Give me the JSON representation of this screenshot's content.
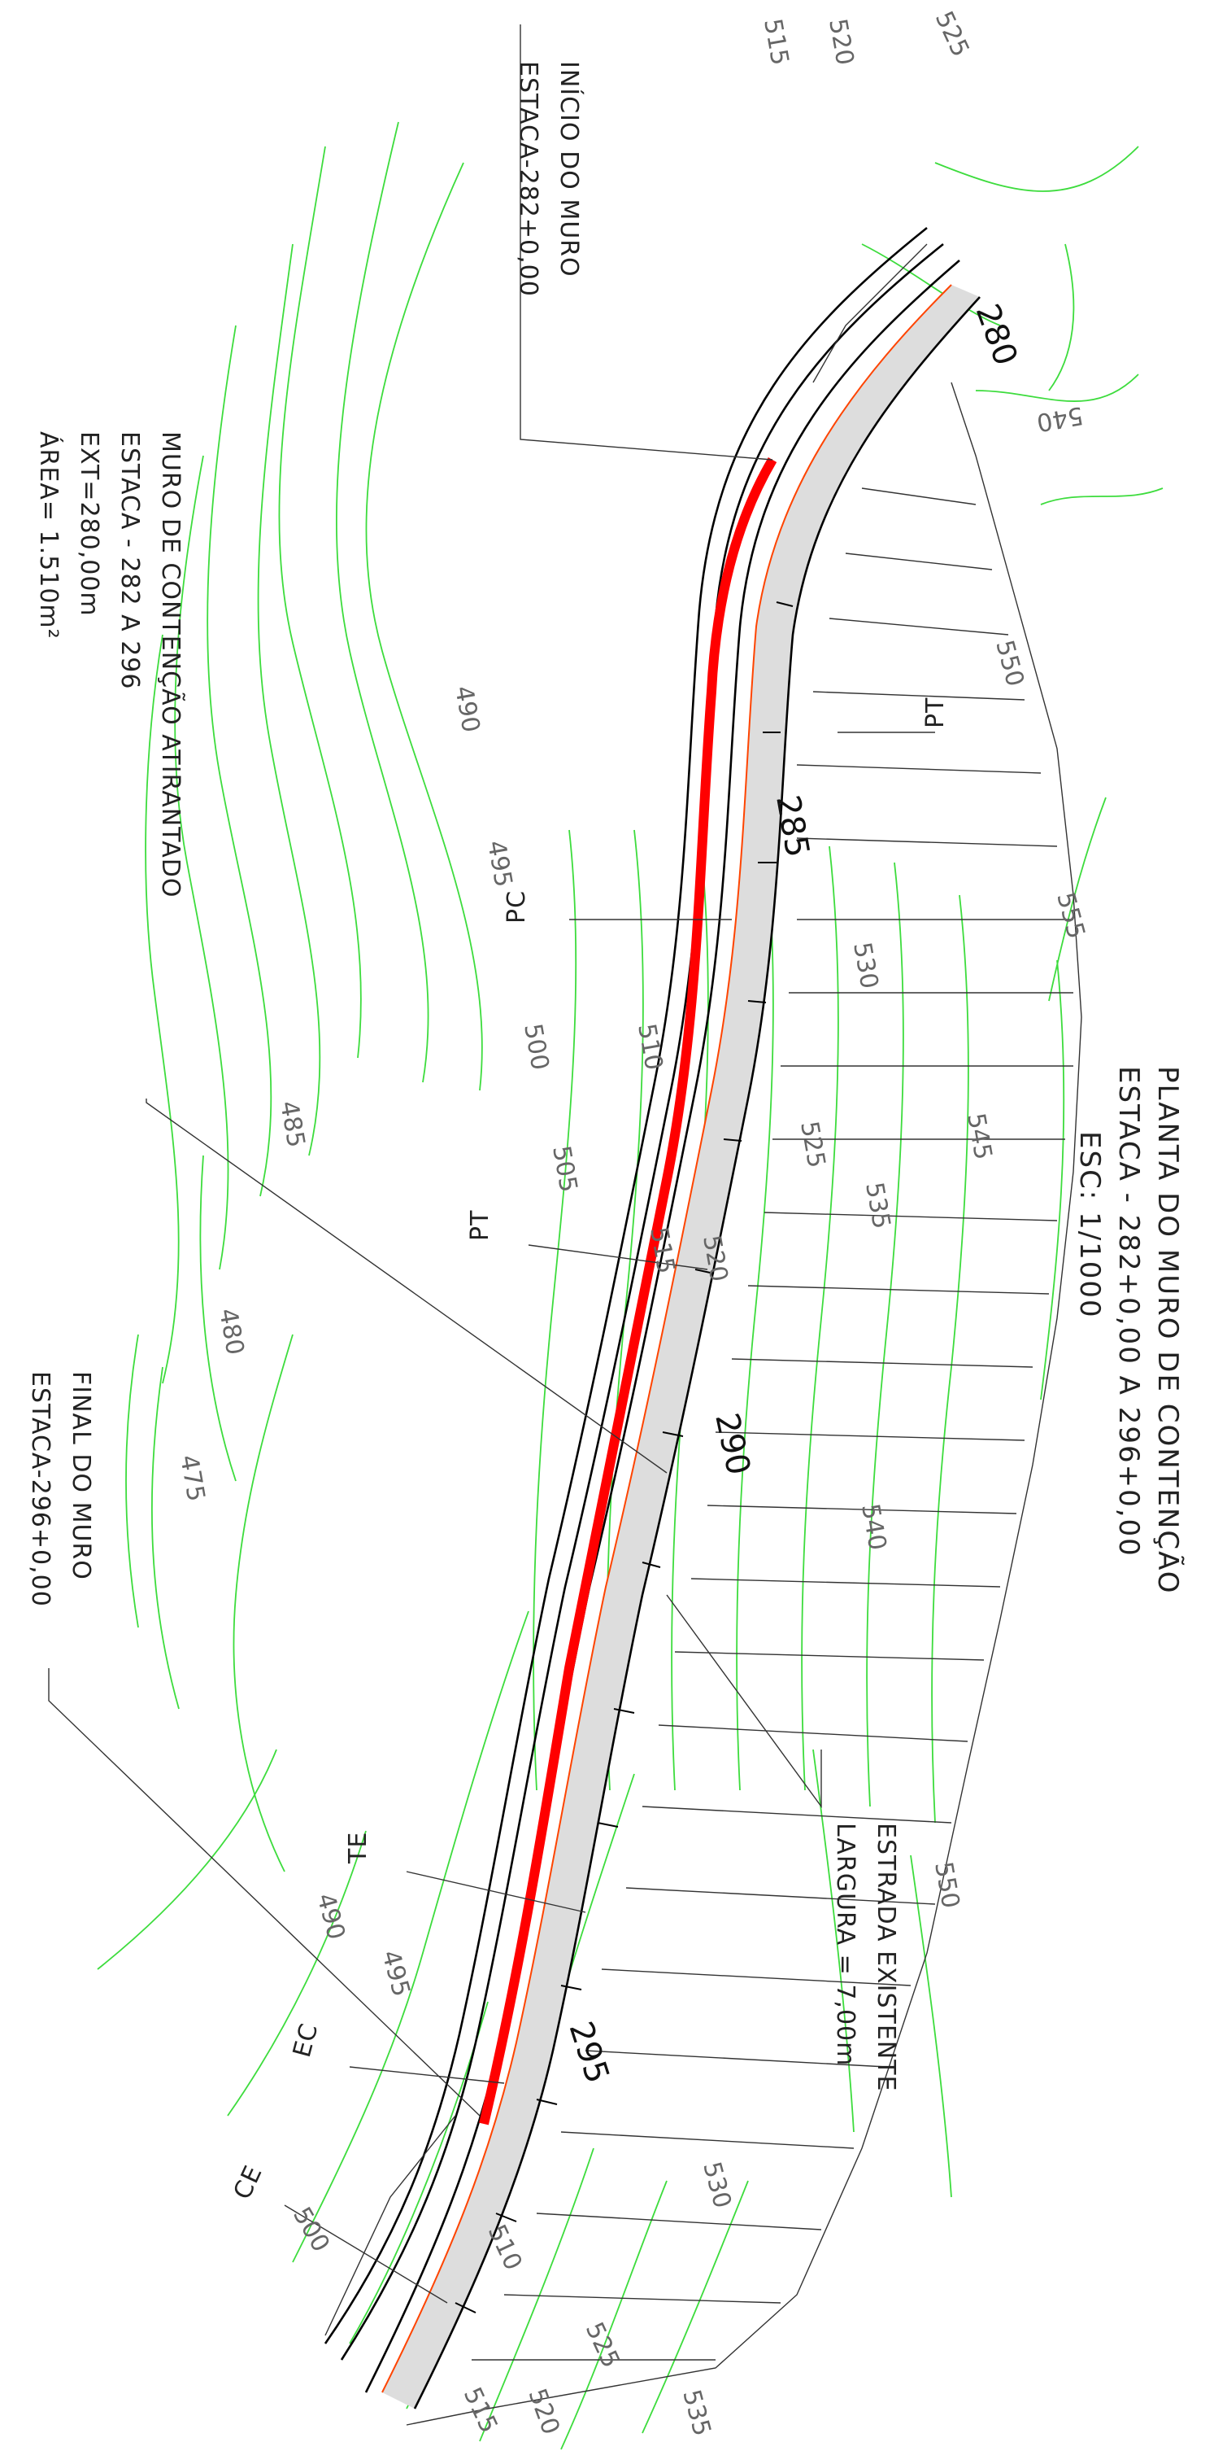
{
  "title": {
    "line1": "PLANTA DO MURO DE CONTENÇÃO",
    "line2": "ESTACA - 282+0,00 A 296+0,00",
    "line3": "ESC: 1/1000"
  },
  "wall_start": {
    "line1": "INÍCIO DO MURO",
    "line2": "ESTACA-282+0,00"
  },
  "wall_info": {
    "line1": "MURO DE CONTENÇÃO ATIRANTADO",
    "line2": "ESTACA - 282 A 296",
    "line3": "EXT=280,00m",
    "line4": "ÁREA= 1.510m²"
  },
  "wall_end": {
    "line1": "FINAL DO MURO",
    "line2": "ESTACA-296+0,00"
  },
  "road": {
    "line1": "ESTRADA EXISTENTE",
    "line2": "LARGURA = 7,00m"
  },
  "curve_points": {
    "pt1": "PT",
    "pc": "PC",
    "pt2": "PT",
    "te": "TE",
    "ec": "EC",
    "ce": "CE"
  },
  "stations": {
    "s280": "280",
    "s285": "285",
    "s290": "290",
    "s295": "295"
  },
  "contours": {
    "c515_top": "515",
    "c520_top": "520",
    "c525_top": "525",
    "c540": "540",
    "c550": "550",
    "c555": "555",
    "c530": "530",
    "c545": "545",
    "c525": "525",
    "c535": "535",
    "c520": "520",
    "c515": "515",
    "c540b": "540",
    "c510": "510",
    "c505": "505",
    "c500": "500",
    "c495": "495",
    "c490": "490",
    "c485": "485",
    "c480": "480",
    "c475": "475",
    "c550b": "550",
    "c530b": "530",
    "c490b": "490",
    "c495b": "495",
    "c500b": "500",
    "c510b": "510",
    "c525b": "525",
    "c515b": "515",
    "c520b": "520",
    "c535b": "535"
  },
  "colors": {
    "wall": "#ff0000",
    "contour": "#3ddc3d",
    "road_fill": "#dddddd",
    "edge": "#ff4400"
  }
}
